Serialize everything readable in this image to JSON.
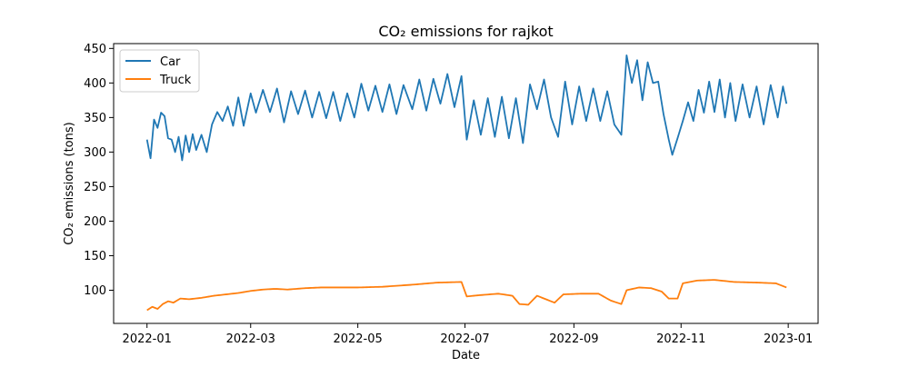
{
  "chart_data": {
    "type": "line",
    "title": "CO₂ emissions for rajkot",
    "xlabel": "Date",
    "ylabel": "CO₂ emissions (tons)",
    "x_start": "2022-01-01",
    "x_end": "2022-12-31",
    "xlim": [
      "2021-12-13",
      "2023-01-18"
    ],
    "ylim": [
      52,
      457
    ],
    "x_ticks": [
      "2022-01",
      "2022-03",
      "2022-05",
      "2022-07",
      "2022-09",
      "2022-11",
      "2023-01"
    ],
    "x_tick_dates": [
      "2022-01-01",
      "2022-03-01",
      "2022-05-01",
      "2022-07-01",
      "2022-09-01",
      "2022-11-01",
      "2023-01-01"
    ],
    "y_ticks": [
      100,
      150,
      200,
      250,
      300,
      350,
      400,
      450
    ],
    "grid": false,
    "legend_position": "top-left",
    "series": [
      {
        "name": "Car",
        "color": "#1f77b4",
        "anchors": [
          [
            "2022-01-01",
            318
          ],
          [
            "2022-01-03",
            291
          ],
          [
            "2022-01-05",
            347
          ],
          [
            "2022-01-07",
            335
          ],
          [
            "2022-01-09",
            357
          ],
          [
            "2022-01-11",
            352
          ],
          [
            "2022-01-13",
            320
          ],
          [
            "2022-01-15",
            318
          ],
          [
            "2022-01-17",
            300
          ],
          [
            "2022-01-19",
            322
          ],
          [
            "2022-01-21",
            288
          ],
          [
            "2022-01-23",
            324
          ],
          [
            "2022-01-25",
            300
          ],
          [
            "2022-01-27",
            326
          ],
          [
            "2022-01-29",
            303
          ],
          [
            "2022-02-01",
            325
          ],
          [
            "2022-02-04",
            300
          ],
          [
            "2022-02-07",
            340
          ],
          [
            "2022-02-10",
            358
          ],
          [
            "2022-02-13",
            345
          ],
          [
            "2022-02-16",
            366
          ],
          [
            "2022-02-19",
            338
          ],
          [
            "2022-02-22",
            379
          ],
          [
            "2022-02-25",
            338
          ],
          [
            "2022-03-01",
            385
          ],
          [
            "2022-03-04",
            357
          ],
          [
            "2022-03-08",
            390
          ],
          [
            "2022-03-12",
            358
          ],
          [
            "2022-03-16",
            392
          ],
          [
            "2022-03-20",
            343
          ],
          [
            "2022-03-24",
            388
          ],
          [
            "2022-03-28",
            355
          ],
          [
            "2022-04-01",
            389
          ],
          [
            "2022-04-05",
            350
          ],
          [
            "2022-04-09",
            387
          ],
          [
            "2022-04-13",
            349
          ],
          [
            "2022-04-17",
            387
          ],
          [
            "2022-04-21",
            345
          ],
          [
            "2022-04-25",
            385
          ],
          [
            "2022-04-29",
            350
          ],
          [
            "2022-05-03",
            399
          ],
          [
            "2022-05-07",
            360
          ],
          [
            "2022-05-11",
            396
          ],
          [
            "2022-05-15",
            358
          ],
          [
            "2022-05-19",
            398
          ],
          [
            "2022-05-23",
            355
          ],
          [
            "2022-05-27",
            397
          ],
          [
            "2022-06-01",
            362
          ],
          [
            "2022-06-05",
            405
          ],
          [
            "2022-06-09",
            360
          ],
          [
            "2022-06-13",
            406
          ],
          [
            "2022-06-17",
            370
          ],
          [
            "2022-06-21",
            413
          ],
          [
            "2022-06-25",
            365
          ],
          [
            "2022-06-29",
            410
          ],
          [
            "2022-07-02",
            318
          ],
          [
            "2022-07-06",
            375
          ],
          [
            "2022-07-10",
            325
          ],
          [
            "2022-07-14",
            378
          ],
          [
            "2022-07-18",
            322
          ],
          [
            "2022-07-22",
            380
          ],
          [
            "2022-07-26",
            320
          ],
          [
            "2022-07-30",
            378
          ],
          [
            "2022-08-03",
            313
          ],
          [
            "2022-08-07",
            398
          ],
          [
            "2022-08-11",
            362
          ],
          [
            "2022-08-15",
            405
          ],
          [
            "2022-08-19",
            350
          ],
          [
            "2022-08-23",
            322
          ],
          [
            "2022-08-27",
            402
          ],
          [
            "2022-08-31",
            340
          ],
          [
            "2022-09-04",
            395
          ],
          [
            "2022-09-08",
            345
          ],
          [
            "2022-09-12",
            392
          ],
          [
            "2022-09-16",
            345
          ],
          [
            "2022-09-20",
            388
          ],
          [
            "2022-09-24",
            340
          ],
          [
            "2022-09-28",
            325
          ],
          [
            "2022-10-01",
            440
          ],
          [
            "2022-10-04",
            400
          ],
          [
            "2022-10-07",
            433
          ],
          [
            "2022-10-10",
            375
          ],
          [
            "2022-10-13",
            430
          ],
          [
            "2022-10-16",
            400
          ],
          [
            "2022-10-19",
            402
          ],
          [
            "2022-10-22",
            355
          ],
          [
            "2022-10-25",
            318
          ],
          [
            "2022-10-27",
            296
          ],
          [
            "2022-10-30",
            320
          ],
          [
            "2022-11-02",
            345
          ],
          [
            "2022-11-05",
            372
          ],
          [
            "2022-11-08",
            345
          ],
          [
            "2022-11-11",
            390
          ],
          [
            "2022-11-14",
            357
          ],
          [
            "2022-11-17",
            402
          ],
          [
            "2022-11-20",
            358
          ],
          [
            "2022-11-23",
            405
          ],
          [
            "2022-11-26",
            350
          ],
          [
            "2022-11-29",
            400
          ],
          [
            "2022-12-02",
            345
          ],
          [
            "2022-12-06",
            398
          ],
          [
            "2022-12-10",
            350
          ],
          [
            "2022-12-14",
            395
          ],
          [
            "2022-12-18",
            340
          ],
          [
            "2022-12-22",
            397
          ],
          [
            "2022-12-26",
            350
          ],
          [
            "2022-12-29",
            395
          ],
          [
            "2022-12-31",
            370
          ]
        ]
      },
      {
        "name": "Truck",
        "color": "#ff7f0e",
        "anchors": [
          [
            "2022-01-01",
            71
          ],
          [
            "2022-01-04",
            76
          ],
          [
            "2022-01-07",
            73
          ],
          [
            "2022-01-10",
            80
          ],
          [
            "2022-01-13",
            84
          ],
          [
            "2022-01-16",
            82
          ],
          [
            "2022-01-20",
            88
          ],
          [
            "2022-01-25",
            87
          ],
          [
            "2022-02-01",
            89
          ],
          [
            "2022-02-08",
            92
          ],
          [
            "2022-02-15",
            94
          ],
          [
            "2022-02-22",
            96
          ],
          [
            "2022-03-01",
            99
          ],
          [
            "2022-03-08",
            101
          ],
          [
            "2022-03-15",
            102
          ],
          [
            "2022-03-22",
            101
          ],
          [
            "2022-04-01",
            103
          ],
          [
            "2022-04-10",
            104
          ],
          [
            "2022-04-20",
            104
          ],
          [
            "2022-05-01",
            104
          ],
          [
            "2022-05-15",
            105
          ],
          [
            "2022-06-01",
            108
          ],
          [
            "2022-06-15",
            111
          ],
          [
            "2022-06-29",
            112
          ],
          [
            "2022-07-02",
            91
          ],
          [
            "2022-07-10",
            93
          ],
          [
            "2022-07-20",
            95
          ],
          [
            "2022-07-28",
            92
          ],
          [
            "2022-08-01",
            80
          ],
          [
            "2022-08-06",
            79
          ],
          [
            "2022-08-11",
            92
          ],
          [
            "2022-08-16",
            87
          ],
          [
            "2022-08-21",
            82
          ],
          [
            "2022-08-26",
            94
          ],
          [
            "2022-09-05",
            95
          ],
          [
            "2022-09-15",
            95
          ],
          [
            "2022-09-22",
            85
          ],
          [
            "2022-09-28",
            80
          ],
          [
            "2022-10-01",
            100
          ],
          [
            "2022-10-08",
            104
          ],
          [
            "2022-10-15",
            103
          ],
          [
            "2022-10-21",
            98
          ],
          [
            "2022-10-25",
            88
          ],
          [
            "2022-10-30",
            88
          ],
          [
            "2022-11-02",
            110
          ],
          [
            "2022-11-10",
            114
          ],
          [
            "2022-11-20",
            115
          ],
          [
            "2022-12-01",
            112
          ],
          [
            "2022-12-15",
            111
          ],
          [
            "2022-12-25",
            110
          ],
          [
            "2022-12-31",
            104
          ]
        ]
      }
    ]
  }
}
